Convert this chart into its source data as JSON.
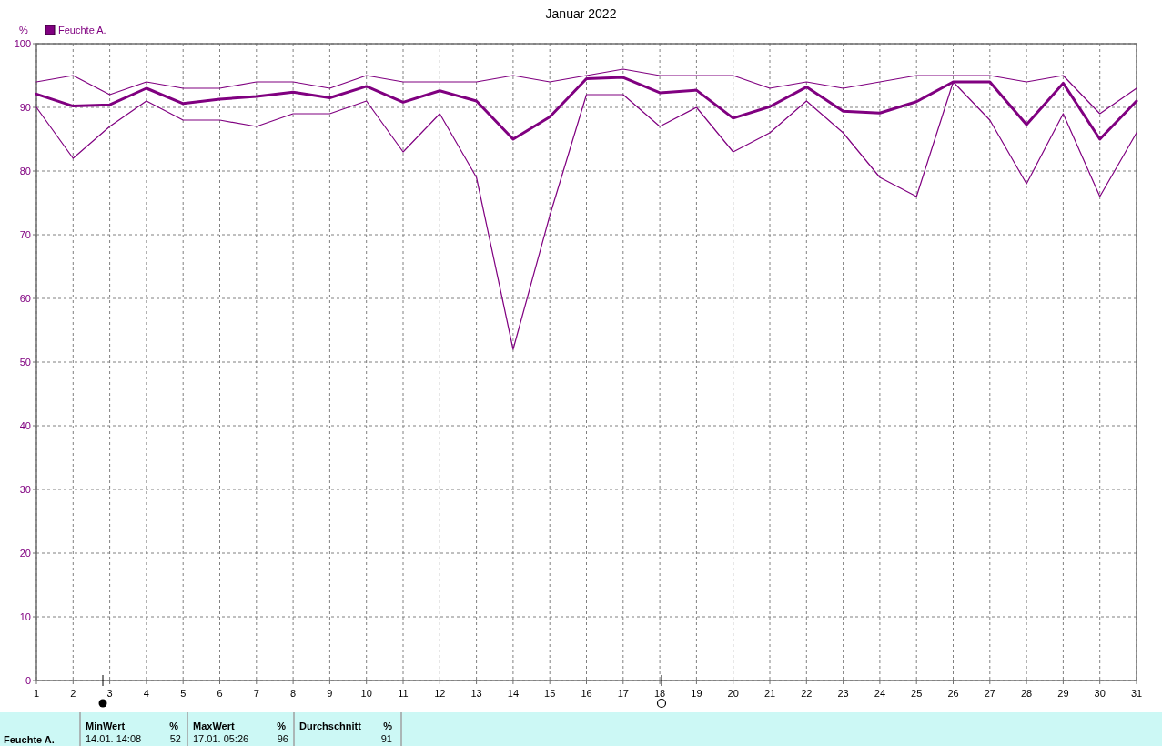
{
  "chart_data": {
    "type": "line",
    "title": "Januar 2022",
    "ylabel": "%",
    "x": [
      1,
      2,
      3,
      4,
      5,
      6,
      7,
      8,
      9,
      10,
      11,
      12,
      13,
      14,
      15,
      16,
      17,
      18,
      19,
      20,
      21,
      22,
      23,
      24,
      25,
      26,
      27,
      28,
      29,
      30,
      31
    ],
    "xlim": [
      1,
      31
    ],
    "xticks": [
      1,
      2,
      3,
      4,
      5,
      6,
      7,
      8,
      9,
      10,
      11,
      12,
      13,
      14,
      15,
      16,
      17,
      18,
      19,
      20,
      21,
      22,
      23,
      24,
      25,
      26,
      27,
      28,
      29,
      30,
      31
    ],
    "ylim": [
      0,
      100
    ],
    "yticks": [
      0,
      10,
      20,
      30,
      40,
      50,
      60,
      70,
      80,
      90,
      100
    ],
    "grid": true,
    "legend": "top left",
    "series": [
      {
        "name": "Feuchte A.",
        "color": "#800080",
        "values": [
          92.1,
          90.2,
          90.4,
          93,
          90.6,
          91.3,
          91.7,
          92.4,
          91.5,
          93.3,
          90.8,
          92.6,
          91,
          85,
          88.5,
          94.5,
          94.7,
          92.3,
          92.7,
          88.3,
          90.1,
          93.2,
          89.4,
          89.1,
          90.9,
          94,
          94,
          87.3,
          93.8,
          85,
          91
        ]
      },
      {
        "color": "#800080",
        "values": [
          94,
          95,
          92,
          94,
          93,
          93,
          94,
          94,
          93,
          95,
          94,
          94,
          94,
          95,
          94,
          95,
          96,
          95,
          95,
          95,
          93,
          94,
          93,
          94,
          95,
          95,
          95,
          94,
          95,
          89,
          93
        ]
      },
      {
        "color": "#800080",
        "values": [
          90,
          82,
          87,
          91,
          88,
          88,
          87,
          89,
          89,
          91,
          83,
          89,
          79,
          52,
          73,
          92,
          92,
          87,
          90,
          83,
          86,
          91,
          86,
          79,
          76,
          94,
          88,
          78,
          89,
          76,
          86
        ]
      }
    ],
    "annotations": [
      "Feuchte A.",
      "MinWert",
      "%",
      "14.01. 14:08",
      "52",
      "MaxWert",
      "%",
      "17.01. 05:26",
      "96",
      "Durchschnitt",
      "%",
      "91"
    ]
  }
}
